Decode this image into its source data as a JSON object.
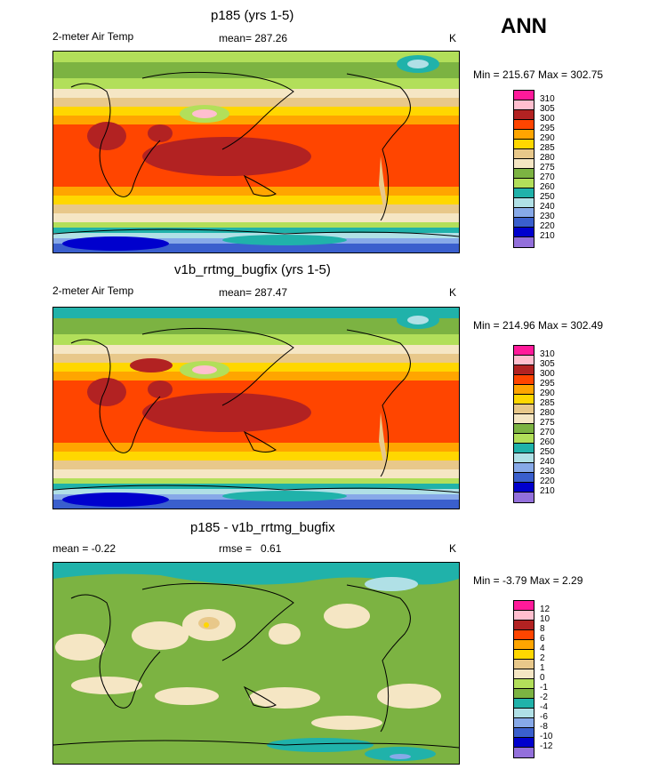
{
  "season": "ANN",
  "panels": [
    {
      "title": "p185 (yrs 1-5)",
      "variable": "2-meter Air Temp",
      "stat_label": "mean=",
      "stat_value": "287.26",
      "units": "K",
      "minmax": "Min = 215.67 Max = 302.75",
      "type": "field"
    },
    {
      "title": "v1b_rrtmg_bugfix (yrs 1-5)",
      "variable": "2-meter Air Temp",
      "stat_label": "mean=",
      "stat_value": "287.47",
      "units": "K",
      "minmax": "Min = 214.96 Max = 302.49",
      "type": "field"
    },
    {
      "title": "p185 - v1b_rrtmg_bugfix",
      "variable": "mean =  -0.22",
      "stat_label": "rmse =",
      "stat_value": "0.61",
      "units": "K",
      "minmax": "Min =  -3.79 Max =   2.29",
      "type": "diff"
    }
  ],
  "field_colorbar": {
    "levels": [
      "310",
      "305",
      "300",
      "295",
      "290",
      "285",
      "280",
      "275",
      "270",
      "260",
      "250",
      "240",
      "230",
      "220",
      "210"
    ],
    "colors": [
      "#ff1a9a",
      "#ffbfcf",
      "#b22222",
      "#ff4500",
      "#ffa500",
      "#ffd700",
      "#e8c88a",
      "#f5e6c4",
      "#7cb342",
      "#b2df5a",
      "#20b2aa",
      "#b0e0e6",
      "#87a9e8",
      "#3a5fcd",
      "#0000cd",
      "#9370db"
    ]
  },
  "diff_colorbar": {
    "levels": [
      "12",
      "10",
      "8",
      "6",
      "4",
      "2",
      "1",
      "0",
      "-1",
      "-2",
      "-4",
      "-6",
      "-8",
      "-10",
      "-12"
    ],
    "colors": [
      "#ff1a9a",
      "#ffbfcf",
      "#b22222",
      "#ff4500",
      "#ffa500",
      "#ffd700",
      "#e8c88a",
      "#f5e6c4",
      "#b2df5a",
      "#7cb342",
      "#20b2aa",
      "#b0e0e6",
      "#87a9e8",
      "#3a5fcd",
      "#0000cd",
      "#9370db"
    ]
  }
}
